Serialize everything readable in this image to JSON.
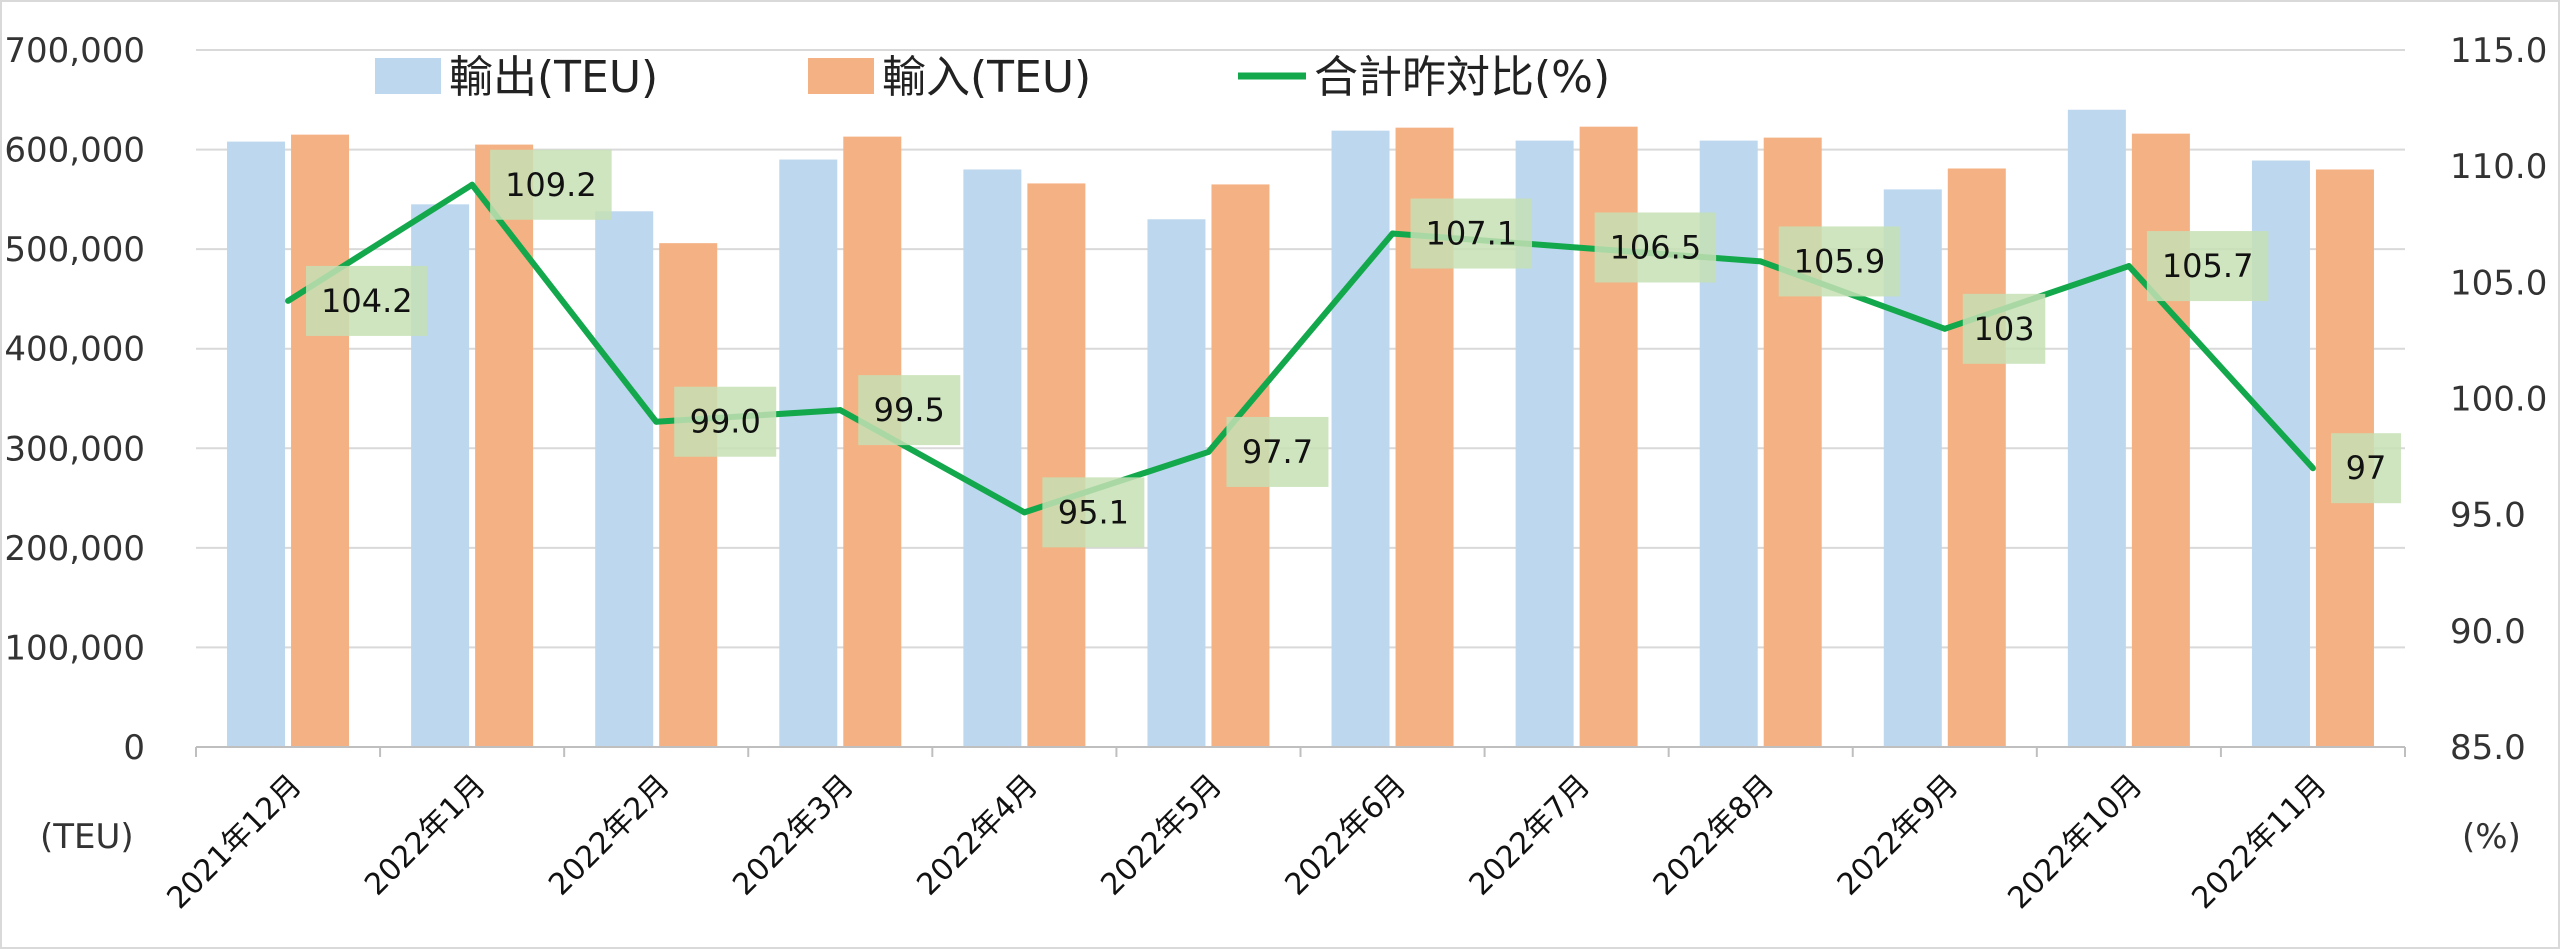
{
  "chart_data": {
    "type": "bar",
    "categories": [
      "2021年12月",
      "2022年1月",
      "2022年2月",
      "2022年3月",
      "2022年4月",
      "2022年5月",
      "2022年6月",
      "2022年7月",
      "2022年8月",
      "2022年9月",
      "2022年10月",
      "2022年11月"
    ],
    "series": [
      {
        "name": "輸出(TEU)",
        "type": "bar",
        "axis": "left",
        "color": "#bdd7ee",
        "values": [
          608000,
          545000,
          538000,
          590000,
          580000,
          530000,
          619000,
          609000,
          609000,
          560000,
          640000,
          589000
        ]
      },
      {
        "name": "輸入(TEU)",
        "type": "bar",
        "axis": "left",
        "color": "#f4b183",
        "values": [
          615000,
          605000,
          506000,
          613000,
          566000,
          565000,
          622000,
          623000,
          612000,
          581000,
          616000,
          580000
        ]
      },
      {
        "name": "合計昨対比(%)",
        "type": "line",
        "axis": "right",
        "color": "#13a84c",
        "values": [
          104.2,
          109.2,
          99.0,
          99.5,
          95.1,
          97.7,
          107.1,
          106.5,
          105.9,
          103,
          105.7,
          97
        ],
        "labels": [
          "104.2",
          "109.2",
          "99.0",
          "99.5",
          "95.1",
          "97.7",
          "107.1",
          "106.5",
          "105.9",
          "103",
          "105.7",
          "97"
        ]
      }
    ],
    "yaxis_left": {
      "unit": "(TEU)",
      "min": 0,
      "max": 700000,
      "ticks": [
        "0",
        "100,000",
        "200,000",
        "300,000",
        "400,000",
        "500,000",
        "600,000",
        "700,000"
      ]
    },
    "yaxis_right": {
      "unit": "(%)",
      "min": 85,
      "max": 115,
      "ticks": [
        "85.0",
        "90.0",
        "95.0",
        "100.0",
        "105.0",
        "110.0",
        "115.0"
      ]
    },
    "grid": true,
    "legend_position": "top",
    "label_bg_color": "#c6e0b4"
  }
}
